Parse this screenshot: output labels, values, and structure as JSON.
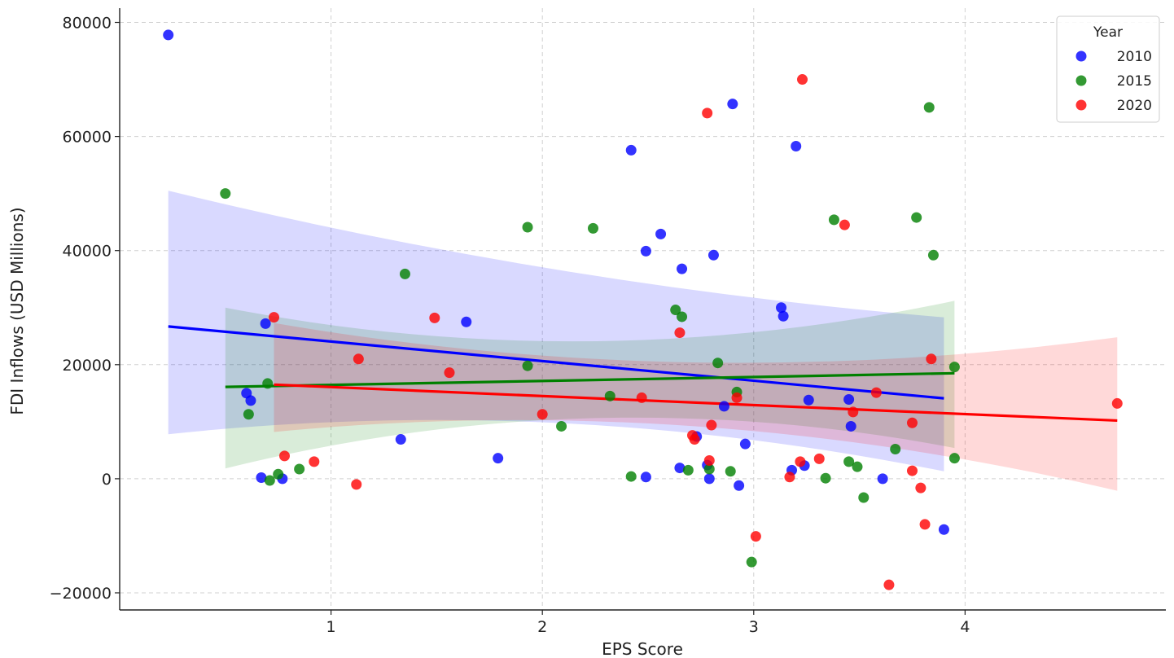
{
  "chart_data": {
    "type": "scatter",
    "title": "",
    "xlabel": "EPS Score",
    "ylabel": "FDI Inflows (USD Millions)",
    "xlim": [
      0.0,
      4.95
    ],
    "ylim": [
      -23000,
      82500
    ],
    "xticks": [
      1,
      2,
      3,
      4
    ],
    "yticks": [
      -20000,
      0,
      20000,
      40000,
      60000,
      80000
    ],
    "xtick_labels": [
      "1",
      "2",
      "3",
      "4"
    ],
    "ytick_labels": [
      "−20000",
      "0",
      "20000",
      "40000",
      "60000",
      "80000"
    ],
    "grid": true,
    "legend": {
      "title": "Year",
      "position": "top-right"
    },
    "series": [
      {
        "name": "2010",
        "color": "#0000ff",
        "points": [
          [
            0.23,
            77800
          ],
          [
            0.6,
            15000
          ],
          [
            0.62,
            13700
          ],
          [
            0.67,
            200
          ],
          [
            0.69,
            27200
          ],
          [
            0.77,
            0
          ],
          [
            1.33,
            6900
          ],
          [
            1.64,
            27500
          ],
          [
            1.79,
            3600
          ],
          [
            2.42,
            57600
          ],
          [
            2.49,
            39900
          ],
          [
            2.49,
            300
          ],
          [
            2.56,
            42900
          ],
          [
            2.65,
            1900
          ],
          [
            2.66,
            36800
          ],
          [
            2.73,
            7400
          ],
          [
            2.78,
            2400
          ],
          [
            2.79,
            0
          ],
          [
            2.81,
            39200
          ],
          [
            2.86,
            12700
          ],
          [
            2.9,
            65700
          ],
          [
            2.93,
            -1200
          ],
          [
            2.96,
            6100
          ],
          [
            3.13,
            30000
          ],
          [
            3.14,
            28500
          ],
          [
            3.18,
            1500
          ],
          [
            3.2,
            58300
          ],
          [
            3.24,
            2300
          ],
          [
            3.26,
            13800
          ],
          [
            3.45,
            13900
          ],
          [
            3.46,
            9200
          ],
          [
            3.61,
            0
          ],
          [
            3.9,
            -8900
          ]
        ],
        "trend": {
          "x0": 0.23,
          "y0": 26700,
          "x1": 3.9,
          "y1": 14100
        },
        "band": [
          [
            0.23,
            7800,
            50500
          ],
          [
            2.06,
            9800,
            36700
          ],
          [
            3.9,
            1300,
            28300
          ]
        ]
      },
      {
        "name": "2015",
        "color": "#008000",
        "points": [
          [
            0.5,
            50000
          ],
          [
            0.61,
            11300
          ],
          [
            0.7,
            16700
          ],
          [
            0.71,
            -300
          ],
          [
            0.75,
            800
          ],
          [
            0.85,
            1700
          ],
          [
            1.35,
            35900
          ],
          [
            1.93,
            44100
          ],
          [
            1.93,
            19800
          ],
          [
            2.09,
            9200
          ],
          [
            2.24,
            43900
          ],
          [
            2.32,
            14500
          ],
          [
            2.42,
            400
          ],
          [
            2.63,
            29600
          ],
          [
            2.66,
            28400
          ],
          [
            2.69,
            1500
          ],
          [
            2.79,
            1700
          ],
          [
            2.83,
            20300
          ],
          [
            2.89,
            1300
          ],
          [
            2.92,
            15200
          ],
          [
            2.99,
            -14600
          ],
          [
            3.34,
            100
          ],
          [
            3.38,
            45400
          ],
          [
            3.45,
            3000
          ],
          [
            3.49,
            2100
          ],
          [
            3.52,
            -3300
          ],
          [
            3.67,
            5200
          ],
          [
            3.77,
            45800
          ],
          [
            3.83,
            65100
          ],
          [
            3.85,
            39200
          ],
          [
            3.95,
            19600
          ],
          [
            3.95,
            3600
          ]
        ],
        "trend": {
          "x0": 0.5,
          "y0": 16100,
          "x1": 3.95,
          "y1": 18500
        },
        "band": [
          [
            0.5,
            1800,
            30000
          ],
          [
            2.22,
            10600,
            24100
          ],
          [
            3.95,
            5400,
            31200
          ]
        ]
      },
      {
        "name": "2020",
        "color": "#ff0000",
        "points": [
          [
            0.73,
            28300
          ],
          [
            0.78,
            4000
          ],
          [
            0.92,
            3000
          ],
          [
            1.12,
            -1000
          ],
          [
            1.13,
            21000
          ],
          [
            1.49,
            28200
          ],
          [
            1.56,
            18600
          ],
          [
            2.0,
            11300
          ],
          [
            2.47,
            14200
          ],
          [
            2.65,
            25600
          ],
          [
            2.71,
            7600
          ],
          [
            2.72,
            6900
          ],
          [
            2.78,
            64100
          ],
          [
            2.79,
            3200
          ],
          [
            2.8,
            9400
          ],
          [
            2.92,
            14200
          ],
          [
            3.01,
            -10100
          ],
          [
            3.17,
            300
          ],
          [
            3.22,
            3000
          ],
          [
            3.23,
            70000
          ],
          [
            3.31,
            3500
          ],
          [
            3.43,
            44500
          ],
          [
            3.47,
            11700
          ],
          [
            3.58,
            15100
          ],
          [
            3.64,
            -18600
          ],
          [
            3.75,
            1400
          ],
          [
            3.75,
            9800
          ],
          [
            3.79,
            -1600
          ],
          [
            3.81,
            -8000
          ],
          [
            3.84,
            21000
          ],
          [
            4.72,
            13200
          ]
        ],
        "trend": {
          "x0": 0.73,
          "y0": 16500,
          "x1": 4.72,
          "y1": 10200
        },
        "band": [
          [
            0.73,
            8200,
            27300
          ],
          [
            2.72,
            9200,
            20400
          ],
          [
            4.72,
            -2100,
            24800
          ]
        ]
      }
    ]
  }
}
